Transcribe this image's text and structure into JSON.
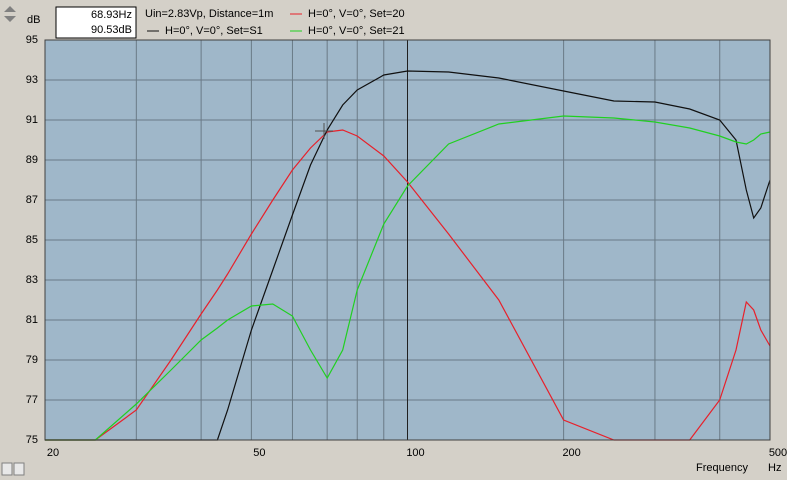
{
  "chart_data": {
    "type": "line",
    "y_label": "dB",
    "x_label": "Frequency",
    "x_unit": "Hz",
    "readout": [
      "68.93Hz",
      "90.53dB"
    ],
    "info": "Uin=2.83Vp, Distance=1m",
    "xscale": "log",
    "xlim": [
      20,
      500
    ],
    "xticks": [
      20,
      50,
      100,
      200,
      500
    ],
    "xgrid": [
      30,
      40,
      50,
      60,
      70,
      80,
      90,
      100,
      200,
      300,
      400
    ],
    "ylim": [
      75,
      95
    ],
    "yticks": [
      95,
      93,
      91,
      89,
      87,
      85,
      83,
      81,
      79,
      77,
      75
    ],
    "grid": true,
    "x": [
      20,
      25,
      30,
      35,
      40,
      43,
      45,
      50,
      55,
      60,
      65,
      70,
      75,
      80,
      90,
      100,
      120,
      150,
      200,
      250,
      300,
      350,
      400,
      430,
      450,
      465,
      480,
      500
    ],
    "series": [
      {
        "name": "H=0°, V=0°, Set=20",
        "color": "#e8202a",
        "values": [
          75,
          75,
          76.5,
          79,
          81.3,
          82.5,
          83.3,
          85.3,
          87,
          88.5,
          89.6,
          90.4,
          90.5,
          90.2,
          89.2,
          87.9,
          85.3,
          82,
          76,
          75,
          75,
          75,
          77,
          79.5,
          81.9,
          81.5,
          80.5,
          79.7
        ]
      },
      {
        "name": "H=0°, V=0°, Set=S1",
        "color": "#101010",
        "values": [
          75,
          75,
          75,
          75,
          75,
          75,
          76.5,
          80.5,
          83.5,
          86.25,
          88.75,
          90.5,
          91.75,
          92.5,
          93.25,
          93.45,
          93.4,
          93.1,
          92.45,
          91.95,
          91.9,
          91.55,
          91,
          90,
          87.5,
          86.1,
          86.6,
          88
        ]
      },
      {
        "name": "H=0°, V=0°, Set=21",
        "color": "#20d020",
        "values": [
          75,
          75,
          76.8,
          78.5,
          80,
          80.6,
          81,
          81.7,
          81.8,
          81.2,
          79.5,
          78.1,
          79.5,
          82.5,
          85.8,
          87.7,
          89.8,
          90.8,
          91.2,
          91.1,
          90.9,
          90.6,
          90.2,
          89.9,
          89.8,
          90,
          90.3,
          90.4
        ]
      }
    ]
  }
}
